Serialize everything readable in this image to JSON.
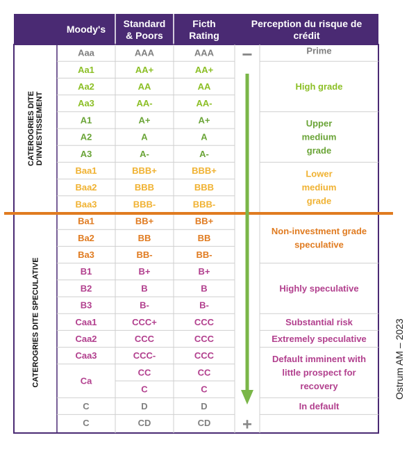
{
  "header": {
    "moodys": "Moody's",
    "sp": [
      "Standard",
      "& Poors"
    ],
    "fitch": [
      "Ficth",
      "Rating"
    ],
    "perception": [
      "Perception du risque de",
      "crédit"
    ]
  },
  "side_labels": {
    "investment": [
      "CATEROGRIES DITE",
      "D'INVESTISSEMENT"
    ],
    "speculative": [
      "CATEROGRIES DITE SPECULATIVE"
    ]
  },
  "rows": [
    {
      "moodys": "Aaa",
      "sp": "AAA",
      "fitch": "AAA",
      "color": "#7f7f7f"
    },
    {
      "moodys": "Aa1",
      "sp": "AA+",
      "fitch": "AA+",
      "color": "#8cbf26"
    },
    {
      "moodys": "Aa2",
      "sp": "AA",
      "fitch": "AA",
      "color": "#8cbf26"
    },
    {
      "moodys": "Aa3",
      "sp": "AA-",
      "fitch": "AA-",
      "color": "#8cbf26"
    },
    {
      "moodys": "A1",
      "sp": "A+",
      "fitch": "A+",
      "color": "#6aa437"
    },
    {
      "moodys": "A2",
      "sp": "A",
      "fitch": "A",
      "color": "#6aa437"
    },
    {
      "moodys": "A3",
      "sp": "A-",
      "fitch": "A-",
      "color": "#6aa437"
    },
    {
      "moodys": "Baa1",
      "sp": "BBB+",
      "fitch": "BBB+",
      "color": "#f0b232"
    },
    {
      "moodys": "Baa2",
      "sp": "BBB",
      "fitch": "BBB",
      "color": "#f0b232"
    },
    {
      "moodys": "Baa3",
      "sp": "BBB-",
      "fitch": "BBB-",
      "color": "#f0b232"
    },
    {
      "moodys": "Ba1",
      "sp": "BB+",
      "fitch": "BB+",
      "color": "#e07b20"
    },
    {
      "moodys": "Ba2",
      "sp": "BB",
      "fitch": "BB",
      "color": "#e07b20"
    },
    {
      "moodys": "Ba3",
      "sp": "BB-",
      "fitch": "BB-",
      "color": "#e07b20"
    },
    {
      "moodys": "B1",
      "sp": "B+",
      "fitch": "B+",
      "color": "#b2408e"
    },
    {
      "moodys": "B2",
      "sp": "B",
      "fitch": "B",
      "color": "#b2408e"
    },
    {
      "moodys": "B3",
      "sp": "B-",
      "fitch": "B-",
      "color": "#b2408e"
    },
    {
      "moodys": "Caa1",
      "sp": "CCC+",
      "fitch": "CCC",
      "color": "#b2408e"
    },
    {
      "moodys": "Caa2",
      "sp": "CCC",
      "fitch": "CCC",
      "color": "#b2408e"
    },
    {
      "moodys": "Caa3",
      "sp": "CCC-",
      "fitch": "CCC",
      "color": "#b2408e"
    },
    {
      "moodys": "Ca",
      "sp": "CC",
      "fitch": "CC",
      "color": "#b2408e"
    },
    {
      "moodys": "",
      "sp": "C",
      "fitch": "C",
      "color": "#b2408e"
    },
    {
      "moodys": "C",
      "sp": "D",
      "fitch": "D",
      "color": "#7f7f7f"
    },
    {
      "moodys": "C",
      "sp": "CD",
      "fitch": "CD",
      "color": "#7f7f7f"
    }
  ],
  "perception": [
    {
      "lines": [
        "Prime"
      ],
      "color": "#7f7f7f"
    },
    {
      "lines": [
        "High grade"
      ],
      "color": "#8cbf26"
    },
    {
      "lines": [
        "Upper",
        "medium",
        "grade"
      ],
      "color": "#6aa437"
    },
    {
      "lines": [
        "Lower",
        "medium",
        "grade"
      ],
      "color": "#f0b232"
    },
    {
      "lines": [
        "Non-investment grade",
        "speculative"
      ],
      "color": "#e07b20"
    },
    {
      "lines": [
        "Highly speculative"
      ],
      "color": "#b2408e"
    },
    {
      "lines": [
        "Substantial risk"
      ],
      "color": "#b2408e"
    },
    {
      "lines": [
        "Extremely speculative"
      ],
      "color": "#b2408e"
    },
    {
      "lines": [
        "Default imminent with",
        "little prospect for",
        "recovery"
      ],
      "color": "#b2408e"
    },
    {
      "lines": [
        "In default"
      ],
      "color": "#b2408e"
    },
    {
      "lines": [
        ""
      ],
      "color": "#b2408e"
    }
  ],
  "risk_arrow": {
    "top_symbol": "−",
    "bottom_symbol": "+"
  },
  "credit": "Ostrum AM – 2023",
  "colors": {
    "header_bg": "#4a2a73",
    "border": "#4a2a73",
    "separator": "#e07b20",
    "arrow": "#7ab648",
    "symbol": "#888888"
  }
}
